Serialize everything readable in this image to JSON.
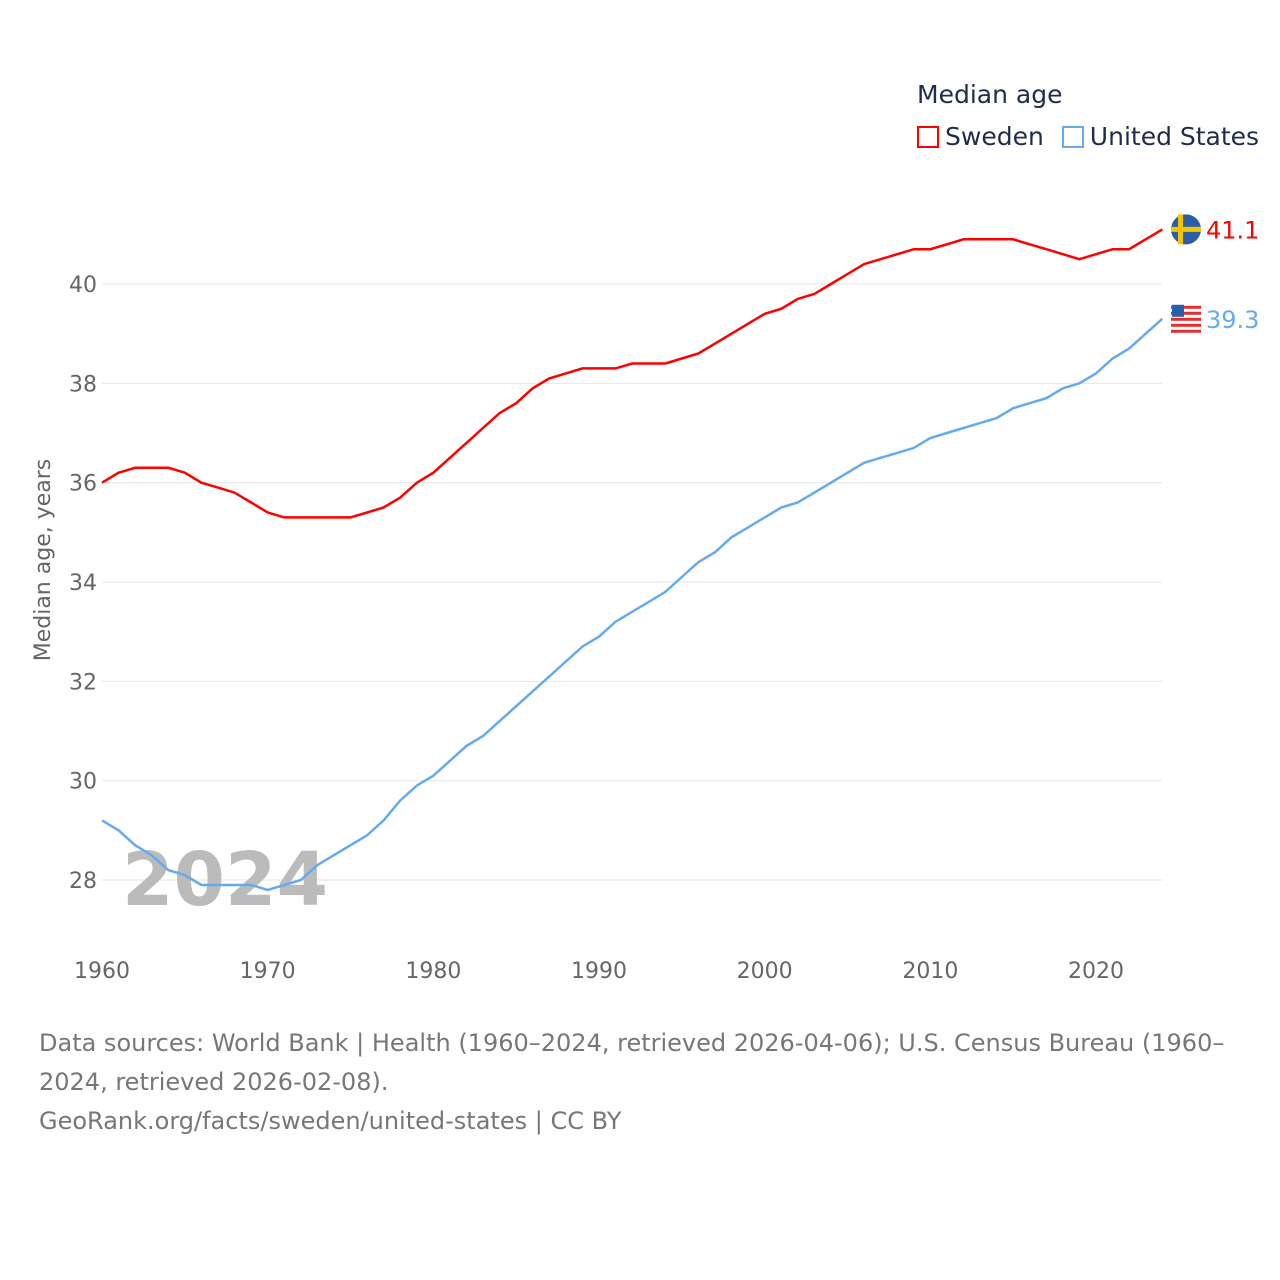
{
  "chart_data": {
    "type": "line",
    "title": "Median age",
    "ylabel": "Median age, years",
    "xlabel": "",
    "xlim": [
      1960,
      2024
    ],
    "ylim": [
      27,
      41.5
    ],
    "xticks": [
      1960,
      1970,
      1980,
      1990,
      2000,
      2010,
      2020
    ],
    "yticks": [
      28,
      30,
      32,
      34,
      36,
      38,
      40
    ],
    "grid": true,
    "legend_position": "top-right",
    "year_label": "2024",
    "x": [
      1960,
      1961,
      1962,
      1963,
      1964,
      1965,
      1966,
      1967,
      1968,
      1969,
      1970,
      1971,
      1972,
      1973,
      1974,
      1975,
      1976,
      1977,
      1978,
      1979,
      1980,
      1981,
      1982,
      1983,
      1984,
      1985,
      1986,
      1987,
      1988,
      1989,
      1990,
      1991,
      1992,
      1993,
      1994,
      1995,
      1996,
      1997,
      1998,
      1999,
      2000,
      2001,
      2002,
      2003,
      2004,
      2005,
      2006,
      2007,
      2008,
      2009,
      2010,
      2011,
      2012,
      2013,
      2014,
      2015,
      2016,
      2017,
      2018,
      2019,
      2020,
      2021,
      2022,
      2023,
      2024
    ],
    "series": [
      {
        "name": "Sweden",
        "color": "#ff0000",
        "end_label": "41.1",
        "values": [
          36.0,
          36.2,
          36.3,
          36.3,
          36.3,
          36.2,
          36.0,
          35.9,
          35.8,
          35.6,
          35.4,
          35.3,
          35.3,
          35.3,
          35.3,
          35.3,
          35.4,
          35.5,
          35.7,
          36.0,
          36.2,
          36.5,
          36.8,
          37.1,
          37.4,
          37.6,
          37.9,
          38.1,
          38.2,
          38.3,
          38.3,
          38.3,
          38.4,
          38.4,
          38.4,
          38.5,
          38.6,
          38.8,
          39.0,
          39.2,
          39.4,
          39.5,
          39.7,
          39.8,
          40.0,
          40.2,
          40.4,
          40.5,
          40.6,
          40.7,
          40.7,
          40.8,
          40.9,
          40.9,
          40.9,
          40.9,
          40.8,
          40.7,
          40.6,
          40.5,
          40.6,
          40.7,
          40.7,
          40.9,
          41.1
        ]
      },
      {
        "name": "United States",
        "color": "#66aaee",
        "end_label": "39.3",
        "values": [
          29.2,
          29.0,
          28.7,
          28.5,
          28.2,
          28.1,
          27.9,
          27.9,
          27.9,
          27.9,
          27.8,
          27.9,
          28.0,
          28.3,
          28.5,
          28.7,
          28.9,
          29.2,
          29.6,
          29.9,
          30.1,
          30.4,
          30.7,
          30.9,
          31.2,
          31.5,
          31.8,
          32.1,
          32.4,
          32.7,
          32.9,
          33.2,
          33.4,
          33.6,
          33.8,
          34.1,
          34.4,
          34.6,
          34.9,
          35.1,
          35.3,
          35.5,
          35.6,
          35.8,
          36.0,
          36.2,
          36.4,
          36.5,
          36.6,
          36.7,
          36.9,
          37.0,
          37.1,
          37.2,
          37.3,
          37.5,
          37.6,
          37.7,
          37.9,
          38.0,
          38.2,
          38.5,
          38.7,
          39.0,
          39.3
        ]
      }
    ]
  },
  "footer": {
    "sources": "Data sources: World Bank | Health (1960–2024, retrieved 2026-04-06); U.S. Census Bureau (1960–2024, retrieved 2026-02-08).",
    "credit": "GeoRank.org/facts/sweden/united-states | CC BY"
  }
}
